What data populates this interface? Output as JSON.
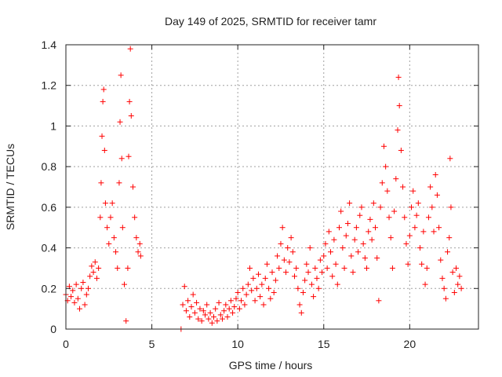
{
  "chart_data": {
    "type": "scatter",
    "title": "Day 149 of 2025, SRMTID for receiver tamr",
    "xlabel": "GPS time / hours",
    "ylabel": "SRMTID / TECUs",
    "xlim": [
      0,
      24
    ],
    "ylim": [
      0,
      1.4
    ],
    "xticks": [
      0,
      5,
      10,
      15,
      20
    ],
    "yticks": [
      0,
      0.2,
      0.4,
      0.6,
      0.8,
      1,
      1.2,
      1.4
    ],
    "xtick_labels": [
      "0",
      "5",
      "10",
      "15",
      "20"
    ],
    "ytick_labels": [
      "0",
      "0.2",
      "0.4",
      "0.6",
      "0.8",
      "1",
      "1.2",
      "1.4"
    ],
    "grid": true,
    "marker": "plus",
    "series": [
      {
        "name": "SRMTID",
        "color": "#ff0000",
        "points": [
          [
            0.0,
            0.17
          ],
          [
            0.1,
            0.14
          ],
          [
            0.2,
            0.21
          ],
          [
            0.3,
            0.16
          ],
          [
            0.4,
            0.19
          ],
          [
            0.5,
            0.13
          ],
          [
            0.6,
            0.22
          ],
          [
            0.7,
            0.15
          ],
          [
            0.8,
            0.1
          ],
          [
            0.9,
            0.2
          ],
          [
            1.0,
            0.23
          ],
          [
            1.1,
            0.12
          ],
          [
            1.2,
            0.17
          ],
          [
            1.3,
            0.2
          ],
          [
            1.4,
            0.26
          ],
          [
            1.5,
            0.31
          ],
          [
            1.6,
            0.28
          ],
          [
            1.7,
            0.33
          ],
          [
            1.8,
            0.25
          ],
          [
            1.9,
            0.3
          ],
          [
            2.0,
            0.55
          ],
          [
            2.05,
            0.72
          ],
          [
            2.1,
            0.95
          ],
          [
            2.15,
            1.12
          ],
          [
            2.2,
            1.18
          ],
          [
            2.25,
            0.88
          ],
          [
            2.3,
            0.62
          ],
          [
            2.4,
            0.5
          ],
          [
            2.5,
            0.42
          ],
          [
            2.6,
            0.55
          ],
          [
            2.7,
            0.62
          ],
          [
            2.8,
            0.45
          ],
          [
            2.9,
            0.38
          ],
          [
            3.0,
            0.3
          ],
          [
            3.1,
            0.72
          ],
          [
            3.15,
            1.02
          ],
          [
            3.2,
            1.25
          ],
          [
            3.25,
            0.84
          ],
          [
            3.3,
            0.5
          ],
          [
            3.4,
            0.22
          ],
          [
            3.5,
            0.04
          ],
          [
            3.6,
            0.3
          ],
          [
            3.65,
            0.85
          ],
          [
            3.7,
            1.12
          ],
          [
            3.75,
            1.38
          ],
          [
            3.8,
            1.05
          ],
          [
            3.9,
            0.7
          ],
          [
            4.0,
            0.55
          ],
          [
            4.1,
            0.45
          ],
          [
            4.2,
            0.38
          ],
          [
            4.3,
            0.42
          ],
          [
            4.35,
            0.36
          ],
          [
            6.7,
            0.0
          ],
          [
            6.8,
            0.12
          ],
          [
            6.9,
            0.21
          ],
          [
            7.0,
            0.09
          ],
          [
            7.1,
            0.14
          ],
          [
            7.2,
            0.06
          ],
          [
            7.3,
            0.11
          ],
          [
            7.4,
            0.17
          ],
          [
            7.5,
            0.08
          ],
          [
            7.6,
            0.13
          ],
          [
            7.7,
            0.05
          ],
          [
            7.8,
            0.1
          ],
          [
            7.9,
            0.04
          ],
          [
            8.0,
            0.09
          ],
          [
            8.1,
            0.07
          ],
          [
            8.2,
            0.12
          ],
          [
            8.3,
            0.05
          ],
          [
            8.4,
            0.08
          ],
          [
            8.5,
            0.03
          ],
          [
            8.6,
            0.06
          ],
          [
            8.7,
            0.1
          ],
          [
            8.8,
            0.04
          ],
          [
            8.9,
            0.13
          ],
          [
            9.0,
            0.07
          ],
          [
            9.1,
            0.05
          ],
          [
            9.2,
            0.09
          ],
          [
            9.3,
            0.12
          ],
          [
            9.4,
            0.06
          ],
          [
            9.5,
            0.1
          ],
          [
            9.6,
            0.14
          ],
          [
            9.7,
            0.08
          ],
          [
            9.8,
            0.11
          ],
          [
            9.9,
            0.15
          ],
          [
            10.0,
            0.18
          ],
          [
            10.1,
            0.1
          ],
          [
            10.2,
            0.14
          ],
          [
            10.3,
            0.2
          ],
          [
            10.4,
            0.12
          ],
          [
            10.5,
            0.17
          ],
          [
            10.6,
            0.22
          ],
          [
            10.7,
            0.3
          ],
          [
            10.8,
            0.19
          ],
          [
            10.9,
            0.25
          ],
          [
            11.0,
            0.14
          ],
          [
            11.1,
            0.2
          ],
          [
            11.2,
            0.27
          ],
          [
            11.3,
            0.16
          ],
          [
            11.4,
            0.22
          ],
          [
            11.5,
            0.12
          ],
          [
            11.6,
            0.25
          ],
          [
            11.7,
            0.32
          ],
          [
            11.8,
            0.2
          ],
          [
            11.9,
            0.15
          ],
          [
            12.0,
            0.28
          ],
          [
            12.1,
            0.18
          ],
          [
            12.2,
            0.24
          ],
          [
            12.3,
            0.36
          ],
          [
            12.4,
            0.3
          ],
          [
            12.5,
            0.42
          ],
          [
            12.6,
            0.5
          ],
          [
            12.7,
            0.34
          ],
          [
            12.8,
            0.28
          ],
          [
            12.9,
            0.4
          ],
          [
            13.0,
            0.33
          ],
          [
            13.1,
            0.45
          ],
          [
            13.2,
            0.38
          ],
          [
            13.3,
            0.26
          ],
          [
            13.4,
            0.3
          ],
          [
            13.5,
            0.2
          ],
          [
            13.6,
            0.12
          ],
          [
            13.7,
            0.08
          ],
          [
            13.8,
            0.18
          ],
          [
            13.9,
            0.24
          ],
          [
            14.0,
            0.32
          ],
          [
            14.1,
            0.28
          ],
          [
            14.2,
            0.4
          ],
          [
            14.3,
            0.22
          ],
          [
            14.4,
            0.16
          ],
          [
            14.5,
            0.3
          ],
          [
            14.6,
            0.25
          ],
          [
            14.7,
            0.2
          ],
          [
            14.8,
            0.34
          ],
          [
            14.9,
            0.28
          ],
          [
            15.0,
            0.36
          ],
          [
            15.1,
            0.42
          ],
          [
            15.2,
            0.3
          ],
          [
            15.3,
            0.48
          ],
          [
            15.4,
            0.38
          ],
          [
            15.5,
            0.26
          ],
          [
            15.6,
            0.44
          ],
          [
            15.7,
            0.32
          ],
          [
            15.8,
            0.22
          ],
          [
            15.9,
            0.5
          ],
          [
            16.0,
            0.58
          ],
          [
            16.1,
            0.4
          ],
          [
            16.2,
            0.3
          ],
          [
            16.3,
            0.46
          ],
          [
            16.4,
            0.52
          ],
          [
            16.5,
            0.62
          ],
          [
            16.6,
            0.36
          ],
          [
            16.7,
            0.28
          ],
          [
            16.8,
            0.44
          ],
          [
            16.9,
            0.5
          ],
          [
            17.0,
            0.38
          ],
          [
            17.1,
            0.56
          ],
          [
            17.2,
            0.6
          ],
          [
            17.3,
            0.42
          ],
          [
            17.4,
            0.35
          ],
          [
            17.5,
            0.3
          ],
          [
            17.6,
            0.48
          ],
          [
            17.7,
            0.54
          ],
          [
            17.8,
            0.44
          ],
          [
            17.9,
            0.62
          ],
          [
            18.0,
            0.5
          ],
          [
            18.1,
            0.35
          ],
          [
            18.2,
            0.14
          ],
          [
            18.3,
            0.6
          ],
          [
            18.4,
            0.72
          ],
          [
            18.5,
            0.9
          ],
          [
            18.6,
            0.8
          ],
          [
            18.7,
            0.68
          ],
          [
            18.8,
            0.55
          ],
          [
            18.9,
            0.45
          ],
          [
            19.0,
            0.3
          ],
          [
            19.1,
            0.58
          ],
          [
            19.2,
            0.74
          ],
          [
            19.3,
            0.98
          ],
          [
            19.35,
            1.24
          ],
          [
            19.4,
            1.1
          ],
          [
            19.5,
            0.88
          ],
          [
            19.6,
            0.7
          ],
          [
            19.7,
            0.55
          ],
          [
            19.8,
            0.42
          ],
          [
            19.9,
            0.32
          ],
          [
            20.0,
            0.46
          ],
          [
            20.1,
            0.6
          ],
          [
            20.2,
            0.68
          ],
          [
            20.3,
            0.5
          ],
          [
            20.4,
            0.56
          ],
          [
            20.5,
            0.62
          ],
          [
            20.6,
            0.4
          ],
          [
            20.7,
            0.32
          ],
          [
            20.8,
            0.48
          ],
          [
            20.9,
            0.22
          ],
          [
            21.0,
            0.3
          ],
          [
            21.1,
            0.55
          ],
          [
            21.2,
            0.7
          ],
          [
            21.3,
            0.6
          ],
          [
            21.4,
            0.48
          ],
          [
            21.5,
            0.76
          ],
          [
            21.6,
            0.66
          ],
          [
            21.7,
            0.5
          ],
          [
            21.8,
            0.34
          ],
          [
            21.9,
            0.25
          ],
          [
            22.0,
            0.2
          ],
          [
            22.1,
            0.15
          ],
          [
            22.2,
            0.38
          ],
          [
            22.3,
            0.45
          ],
          [
            22.35,
            0.84
          ],
          [
            22.4,
            0.6
          ],
          [
            22.5,
            0.28
          ],
          [
            22.6,
            0.18
          ],
          [
            22.7,
            0.3
          ],
          [
            22.8,
            0.22
          ],
          [
            22.9,
            0.26
          ],
          [
            23.0,
            0.2
          ]
        ]
      }
    ]
  }
}
